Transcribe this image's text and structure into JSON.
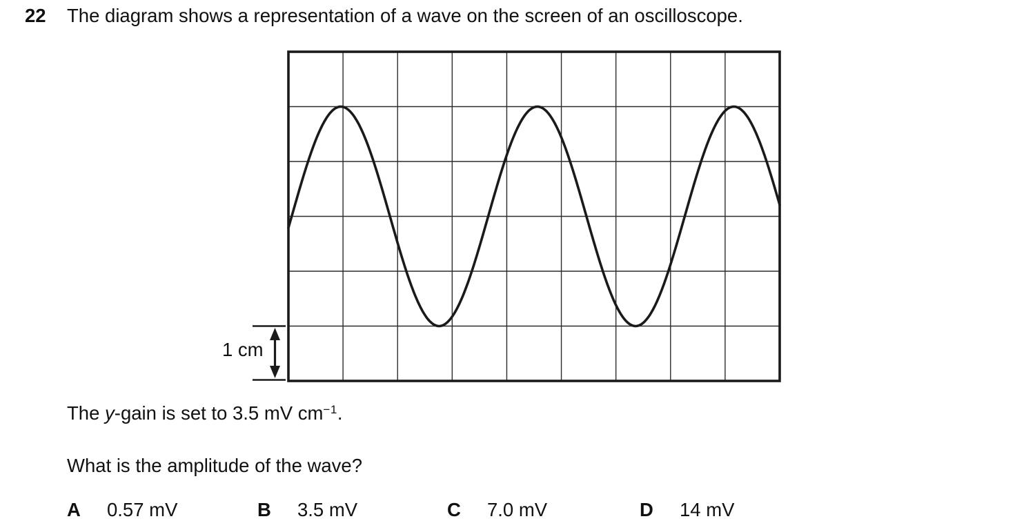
{
  "question": {
    "number": "22",
    "text": "The diagram shows a representation of a wave on the screen of an oscilloscope.",
    "prompt": "What is the amplitude of the wave?"
  },
  "ygain": {
    "prefix": "The ",
    "variable": "y",
    "middle": "-gain is set to 3.5 mV cm",
    "superscript": "−1",
    "suffix": "."
  },
  "diagram": {
    "scale_label": "1 cm"
  },
  "options": [
    {
      "letter": "A",
      "value": "0.57 mV"
    },
    {
      "letter": "B",
      "value": "3.5 mV"
    },
    {
      "letter": "C",
      "value": "7.0 mV"
    },
    {
      "letter": "D",
      "value": "14 mV"
    }
  ],
  "chart_data": {
    "type": "line",
    "title": "Oscilloscope screen trace",
    "grid": {
      "columns": 9,
      "rows": 6,
      "cell_size_label": "1 cm",
      "grid_on": true
    },
    "wave": {
      "shape": "sine",
      "amplitude_cells": 2,
      "peak_to_trough_cells": 4,
      "period_cells": 3.6,
      "first_peak_at_cell": 0.96,
      "midline_row": 3,
      "peak_row": 1,
      "trough_row": 5,
      "cycles_visible": 2.5
    },
    "colors": {
      "trace": "#1a1a1a",
      "gridline": "#2b2b2b",
      "border": "#1a1a1a"
    }
  }
}
